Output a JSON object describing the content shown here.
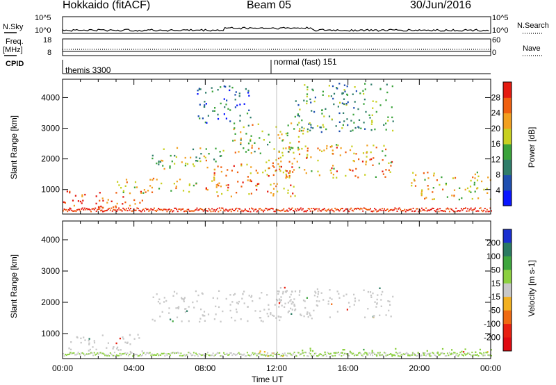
{
  "header": {
    "station": "Hokkaido (fitACF)",
    "beam": "Beam 05",
    "date": "30/Jun/2016"
  },
  "top_panels": {
    "nsky_label": "N.Sky",
    "nsky_ticks": [
      "10^5",
      "10^0"
    ],
    "nsearch_ticks": [
      "10^5",
      "10^0"
    ],
    "nsearch_label": "N.Search",
    "freq_label": "Freq.",
    "freq_unit": "[MHz]",
    "freq_ticks": [
      "18",
      "8"
    ],
    "nave_ticks": [
      "60",
      "0"
    ],
    "nave_label": "Nave",
    "cpid_label": "CPID",
    "cpid_segments": [
      "themis 3300",
      "normal (fast) 151"
    ]
  },
  "chart_data": [
    {
      "type": "heatmap",
      "name": "power",
      "ylabel": "Slant Range [km]",
      "y_ticks": [
        1000,
        2000,
        3000,
        4000
      ],
      "ylim": [
        200,
        4600
      ],
      "x_ticks": [
        "00:00",
        "04:00",
        "08:00",
        "12:00",
        "16:00",
        "20:00",
        "00:00"
      ],
      "xlim_hours": [
        0,
        24
      ],
      "colorbar_label": "Power [dB]",
      "colorbar_ticks": [
        "4",
        "8",
        "12",
        "16",
        "20",
        "24",
        "28"
      ],
      "colorbar_colors": [
        "#0a16ff",
        "#1e4fb0",
        "#2f7d6a",
        "#3aa33a",
        "#c8d020",
        "#f2a020",
        "#f06010",
        "#e51a10"
      ],
      "features": [
        {
          "from": 0,
          "to": 4.5,
          "range": [
            400,
            1000
          ],
          "power": 28
        },
        {
          "from": 3,
          "to": 7.5,
          "range": [
            900,
            1400
          ],
          "power": 20
        },
        {
          "from": 5,
          "to": 9,
          "range": [
            1700,
            2400
          ],
          "power": 16
        },
        {
          "from": 8,
          "to": 13,
          "range": [
            800,
            2000
          ],
          "power": 24
        },
        {
          "from": 12,
          "to": 18.5,
          "range": [
            1400,
            2500
          ],
          "power": 22
        },
        {
          "from": 9.5,
          "to": 13.5,
          "range": [
            2200,
            3200
          ],
          "power": 18
        },
        {
          "from": 13,
          "to": 18.5,
          "range": [
            2900,
            4500
          ],
          "power": 12
        },
        {
          "from": 19.5,
          "to": 24,
          "range": [
            700,
            1600
          ],
          "power": 20
        },
        {
          "from": 7.5,
          "to": 10.5,
          "range": [
            3200,
            4400
          ],
          "power": 8
        }
      ]
    },
    {
      "type": "heatmap",
      "name": "velocity",
      "ylabel": "Slant Range [km]",
      "y_ticks": [
        1000,
        2000,
        3000,
        4000
      ],
      "ylim": [
        200,
        4600
      ],
      "x_ticks": [
        "00:00",
        "04:00",
        "08:00",
        "12:00",
        "16:00",
        "20:00",
        "00:00"
      ],
      "xlim_hours": [
        0,
        24
      ],
      "xlabel": "Time UT",
      "colorbar_label": "Velocity [m s-1]",
      "colorbar_ticks": [
        "200",
        "100",
        "50",
        "15",
        "-15",
        "-50",
        "-100",
        "-200"
      ],
      "colorbar_colors": [
        "#1a2fd0",
        "#2a7a62",
        "#3ea63e",
        "#8cd040",
        "#c8c8c8",
        "#f2b020",
        "#f06a10",
        "#e82010",
        "#e00a10"
      ],
      "features": [
        {
          "from": 0,
          "to": 4.5,
          "range": [
            400,
            1000
          ],
          "velocity": 0
        },
        {
          "from": 5,
          "to": 13,
          "range": [
            1400,
            2400
          ],
          "velocity": 0
        },
        {
          "from": 12,
          "to": 18.5,
          "range": [
            1500,
            2500
          ],
          "velocity": 0
        },
        {
          "from": 11,
          "to": 13,
          "range": [
            300,
            500
          ],
          "velocity": -40
        },
        {
          "from": 13,
          "to": 24,
          "range": [
            300,
            550
          ],
          "velocity": 30
        }
      ]
    }
  ]
}
